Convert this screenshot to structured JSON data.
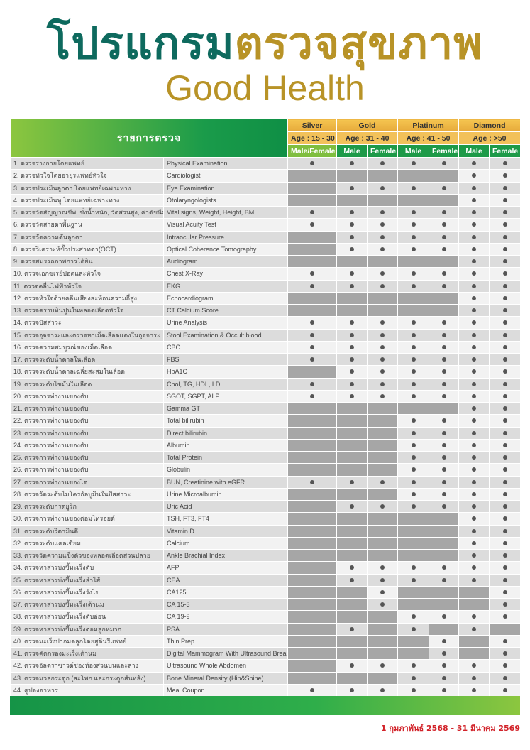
{
  "title": {
    "part1": "โปรแกรม",
    "part2": "ตรวจสุขภาพ",
    "subtitle": "Good Health"
  },
  "header": {
    "items": "รายการตรวจ",
    "tiers": [
      {
        "name": "Silver",
        "age": "Age : 15 - 30"
      },
      {
        "name": "Gold",
        "age": "Age : 31 - 40"
      },
      {
        "name": "Platinum",
        "age": "Age : 41 - 50"
      },
      {
        "name": "Diamond",
        "age": "Age : >50"
      }
    ],
    "sex": [
      "Male/Female",
      "Male",
      "Female",
      "Male",
      "Female",
      "Male",
      "Female"
    ]
  },
  "colors": {
    "teal": "#0e6a5e",
    "gold": "#b89327",
    "green": "#1d9a48",
    "red": "#d2232a",
    "not_included": "#a6a6a6"
  },
  "legend": {
    "o": "included (dot-icon)",
    "x": "not included (gray cell)"
  },
  "rows": [
    [
      "1. ตรวจร่างกายโดยแพทย์",
      "Physical Examination",
      "ooooooo"
    ],
    [
      "2. ตรวจหัวใจโดยอายุรแพทย์หัวใจ",
      "Cardiologist",
      "xxxxxoo"
    ],
    [
      "3. ตรวจประเมินลูกตา โดยแพทย์เฉพาะทาง",
      "Eye Examination",
      "xoooooo"
    ],
    [
      "4. ตรวจประเมินหู โดยแพทย์เฉพาะทาง",
      "Otolaryngologists",
      "xxxxxoo"
    ],
    [
      "5. ตรวจวัดสัญญาณชีพ, ชั่งน้ำหนัก, วัดส่วนสูง, ค่าดัชนีมวลกาย",
      "Vital signs, Weight, Height, BMI",
      "ooooooo"
    ],
    [
      "6. ตรวจวัดสายตาพื้นฐาน",
      "Visual Acuity Test",
      "ooooooo"
    ],
    [
      "7. ตรวจวัดความดันลูกตา",
      "Intraocular Pressure",
      "xoooooo"
    ],
    [
      "8. ตรวจวิเคราะห์ขั้วประสาทตา(OCT)",
      "Optical Coherence Tomography",
      "xoooooo"
    ],
    [
      "9. ตรวจสมรรถภาพการได้ยิน",
      "Audiogram",
      "xxxxxoo"
    ],
    [
      "10. ตรวจเอกซเรย์ปอดและหัวใจ",
      "Chest X-Ray",
      "ooooooo"
    ],
    [
      "11. ตรวจคลื่นไฟฟ้าหัวใจ",
      "EKG",
      "ooooooo"
    ],
    [
      "12. ตรวจหัวใจด้วยคลื่นเสียงสะท้อนความถี่สูง",
      "Echocardiogram",
      "xxxxxoo"
    ],
    [
      "13. ตรวจคราบหินปูนในหลอดเลือดหัวใจ",
      "CT Calcium Score",
      "xxxxxoo"
    ],
    [
      "14. ตรวจปัสสาวะ",
      "Urine Analysis",
      "ooooooo"
    ],
    [
      "15. ตรวจอุจจาระและตรวจหาเม็ดเลือดแดงในอุจจาระ",
      "Stool Examination & Occult blood",
      "ooooooo"
    ],
    [
      "16. ตรวจความสมบูรณ์ของเม็ดเลือด",
      "CBC",
      "ooooooo"
    ],
    [
      "17. ตรวจระดับน้ำตาลในเลือด",
      "FBS",
      "ooooooo"
    ],
    [
      "18. ตรวจระดับน้ำตาลเฉลี่ยสะสมในเลือด",
      "HbA1C",
      "xoooooo"
    ],
    [
      "19. ตรวจระดับไขมันในเลือด",
      "Chol, TG, HDL, LDL",
      "ooooooo"
    ],
    [
      "20. ตรวจการทำงานของตับ",
      "SGOT, SGPT, ALP",
      "ooooooo"
    ],
    [
      "21. ตรวจการทำงานของตับ",
      "Gamma GT",
      "xxxxxoo"
    ],
    [
      "22. ตรวจการทำงานของตับ",
      "Total bilirubin",
      "xxxoooo"
    ],
    [
      "23. ตรวจการทำงานของตับ",
      "Direct bilirubin",
      "xxxoooo"
    ],
    [
      "24. ตรวจการทำงานของตับ",
      "Albumin",
      "xxxoooo"
    ],
    [
      "25. ตรวจการทำงานของตับ",
      "Total Protein",
      "xxxoooo"
    ],
    [
      "26. ตรวจการทำงานของตับ",
      "Globulin",
      "xxxoooo"
    ],
    [
      "27. ตรวจการทำงานของไต",
      "BUN, Creatinine with eGFR",
      "ooooooo"
    ],
    [
      "28. ตรวจวัดระดับไมโครอัลบูมินในปัสสาวะ",
      "Urine Microalbumin",
      "xxxoooo"
    ],
    [
      "29. ตรวจระดับกรดยูริก",
      "Uric Acid",
      "xoooooo"
    ],
    [
      "30. ตรวจการทำงานของต่อมไทรอยด์",
      "TSH, FT3, FT4",
      "xxxxxoo"
    ],
    [
      "31. ตรวจระดับวิตามินดี",
      "Vitamin D",
      "xxxxxoo"
    ],
    [
      "32. ตรวจระดับแคลเซียม",
      "Calcium",
      "xxxxxoo"
    ],
    [
      "33. ตรวจวัดความแข็งตัวของหลอดเลือดส่วนปลาย",
      "Ankle Brachial Index",
      "xxxxxoo"
    ],
    [
      "34. ตรวจหาสารบ่งชี้มะเร็งตับ",
      "AFP",
      "xoooooo"
    ],
    [
      "35. ตรวจหาสารบ่งชี้มะเร็งลำไส้",
      "CEA",
      "xoooooo"
    ],
    [
      "36. ตรวจหาสารบ่งชี้มะเร็งรังไข่",
      "CA125",
      "xxoxxxo"
    ],
    [
      "37. ตรวจหาสารบ่งชี้มะเร็งเต้านม",
      "CA 15-3",
      "xxoxxxo"
    ],
    [
      "38. ตรวจหาสารบ่งชี้มะเร็งตับอ่อน",
      "CA 19-9",
      "xxxoooo"
    ],
    [
      "39. ตรวจหาสารบ่งชี้มะเร็งต่อมลูกหมาก",
      "PSA",
      "xoxoxox"
    ],
    [
      "40. ตรวจมะเร็งปากมดลูกโดยสูตินรีแพทย์",
      "Thin Prep",
      "xxxxoxo"
    ],
    [
      "41. ตรวจคัดกรองมะเร็งเต้านม",
      "Digital Mammogram With Ultrasound Breast",
      "xxxxoxo"
    ],
    [
      "42. ตรวจอัลตราซาวด์ช่องท้องส่วนบนและล่าง",
      "Ultrasound Whole Abdomen",
      "xoooooo"
    ],
    [
      "43. ตรวจมวลกระดูก (สะโพก และกระดูกสันหลัง)",
      "Bone Mineral Density (Hip&Spine)",
      "xxxoooo"
    ],
    [
      "44. คูปองอาหาร",
      "Meal Coupon",
      "ooooooo"
    ]
  ],
  "footer": {
    "period": "1 กุมภาพันธ์ 2568 - 31 มีนาคม 2569"
  }
}
